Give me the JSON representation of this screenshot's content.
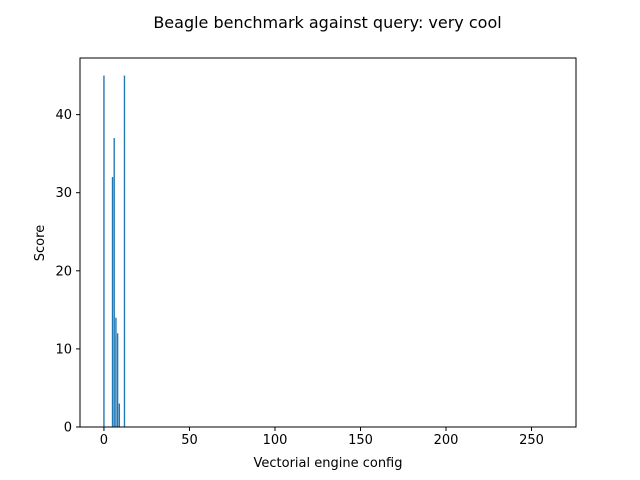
{
  "chart_data": {
    "type": "bar",
    "title": "Beagle benchmark against query: very cool",
    "xlabel": "Vectorial engine config",
    "ylabel": "Score",
    "xlim": [
      -14,
      276
    ],
    "ylim": [
      0,
      47.25
    ],
    "xticks": [
      0,
      50,
      100,
      150,
      200,
      250
    ],
    "yticks": [
      0,
      10,
      20,
      30,
      40
    ],
    "bar_color": "#1f77b4",
    "grid": false,
    "legend": "none",
    "x": [
      0,
      5,
      6,
      7,
      8,
      9,
      12
    ],
    "values": [
      45,
      32,
      37,
      14,
      12,
      3,
      45
    ],
    "bar_width": 0.8
  }
}
